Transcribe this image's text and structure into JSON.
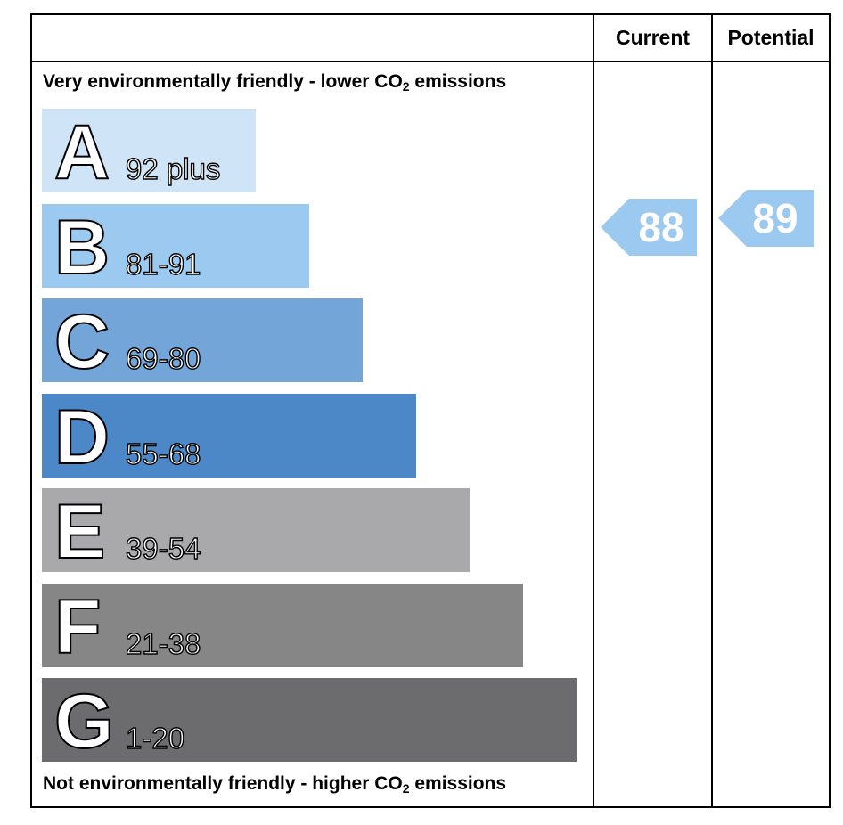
{
  "headers": {
    "current": "Current",
    "potential": "Potential"
  },
  "captions": {
    "top_prefix": "Very environmentally friendly - lower CO",
    "top_subscript": "2",
    "top_suffix": " emissions",
    "bottom_prefix": "Not environmentally friendly - higher CO",
    "bottom_subscript": "2",
    "bottom_suffix": " emissions"
  },
  "chart_data": {
    "type": "bar",
    "bands": [
      {
        "letter": "A",
        "range": "92 plus",
        "color": "#cfe4f6"
      },
      {
        "letter": "B",
        "range": "81-91",
        "color": "#9cc9ef"
      },
      {
        "letter": "C",
        "range": "69-80",
        "color": "#73a5d9"
      },
      {
        "letter": "D",
        "range": "55-68",
        "color": "#4c88c7"
      },
      {
        "letter": "E",
        "range": "39-54",
        "color": "#a9a8aa"
      },
      {
        "letter": "F",
        "range": "21-38",
        "color": "#858685"
      },
      {
        "letter": "G",
        "range": "1-20",
        "color": "#6c6b6d"
      }
    ],
    "current": {
      "value": 88,
      "band": "B",
      "color": "#9cc9ef"
    },
    "potential": {
      "value": 89,
      "band": "B",
      "color": "#9cc9ef"
    }
  }
}
